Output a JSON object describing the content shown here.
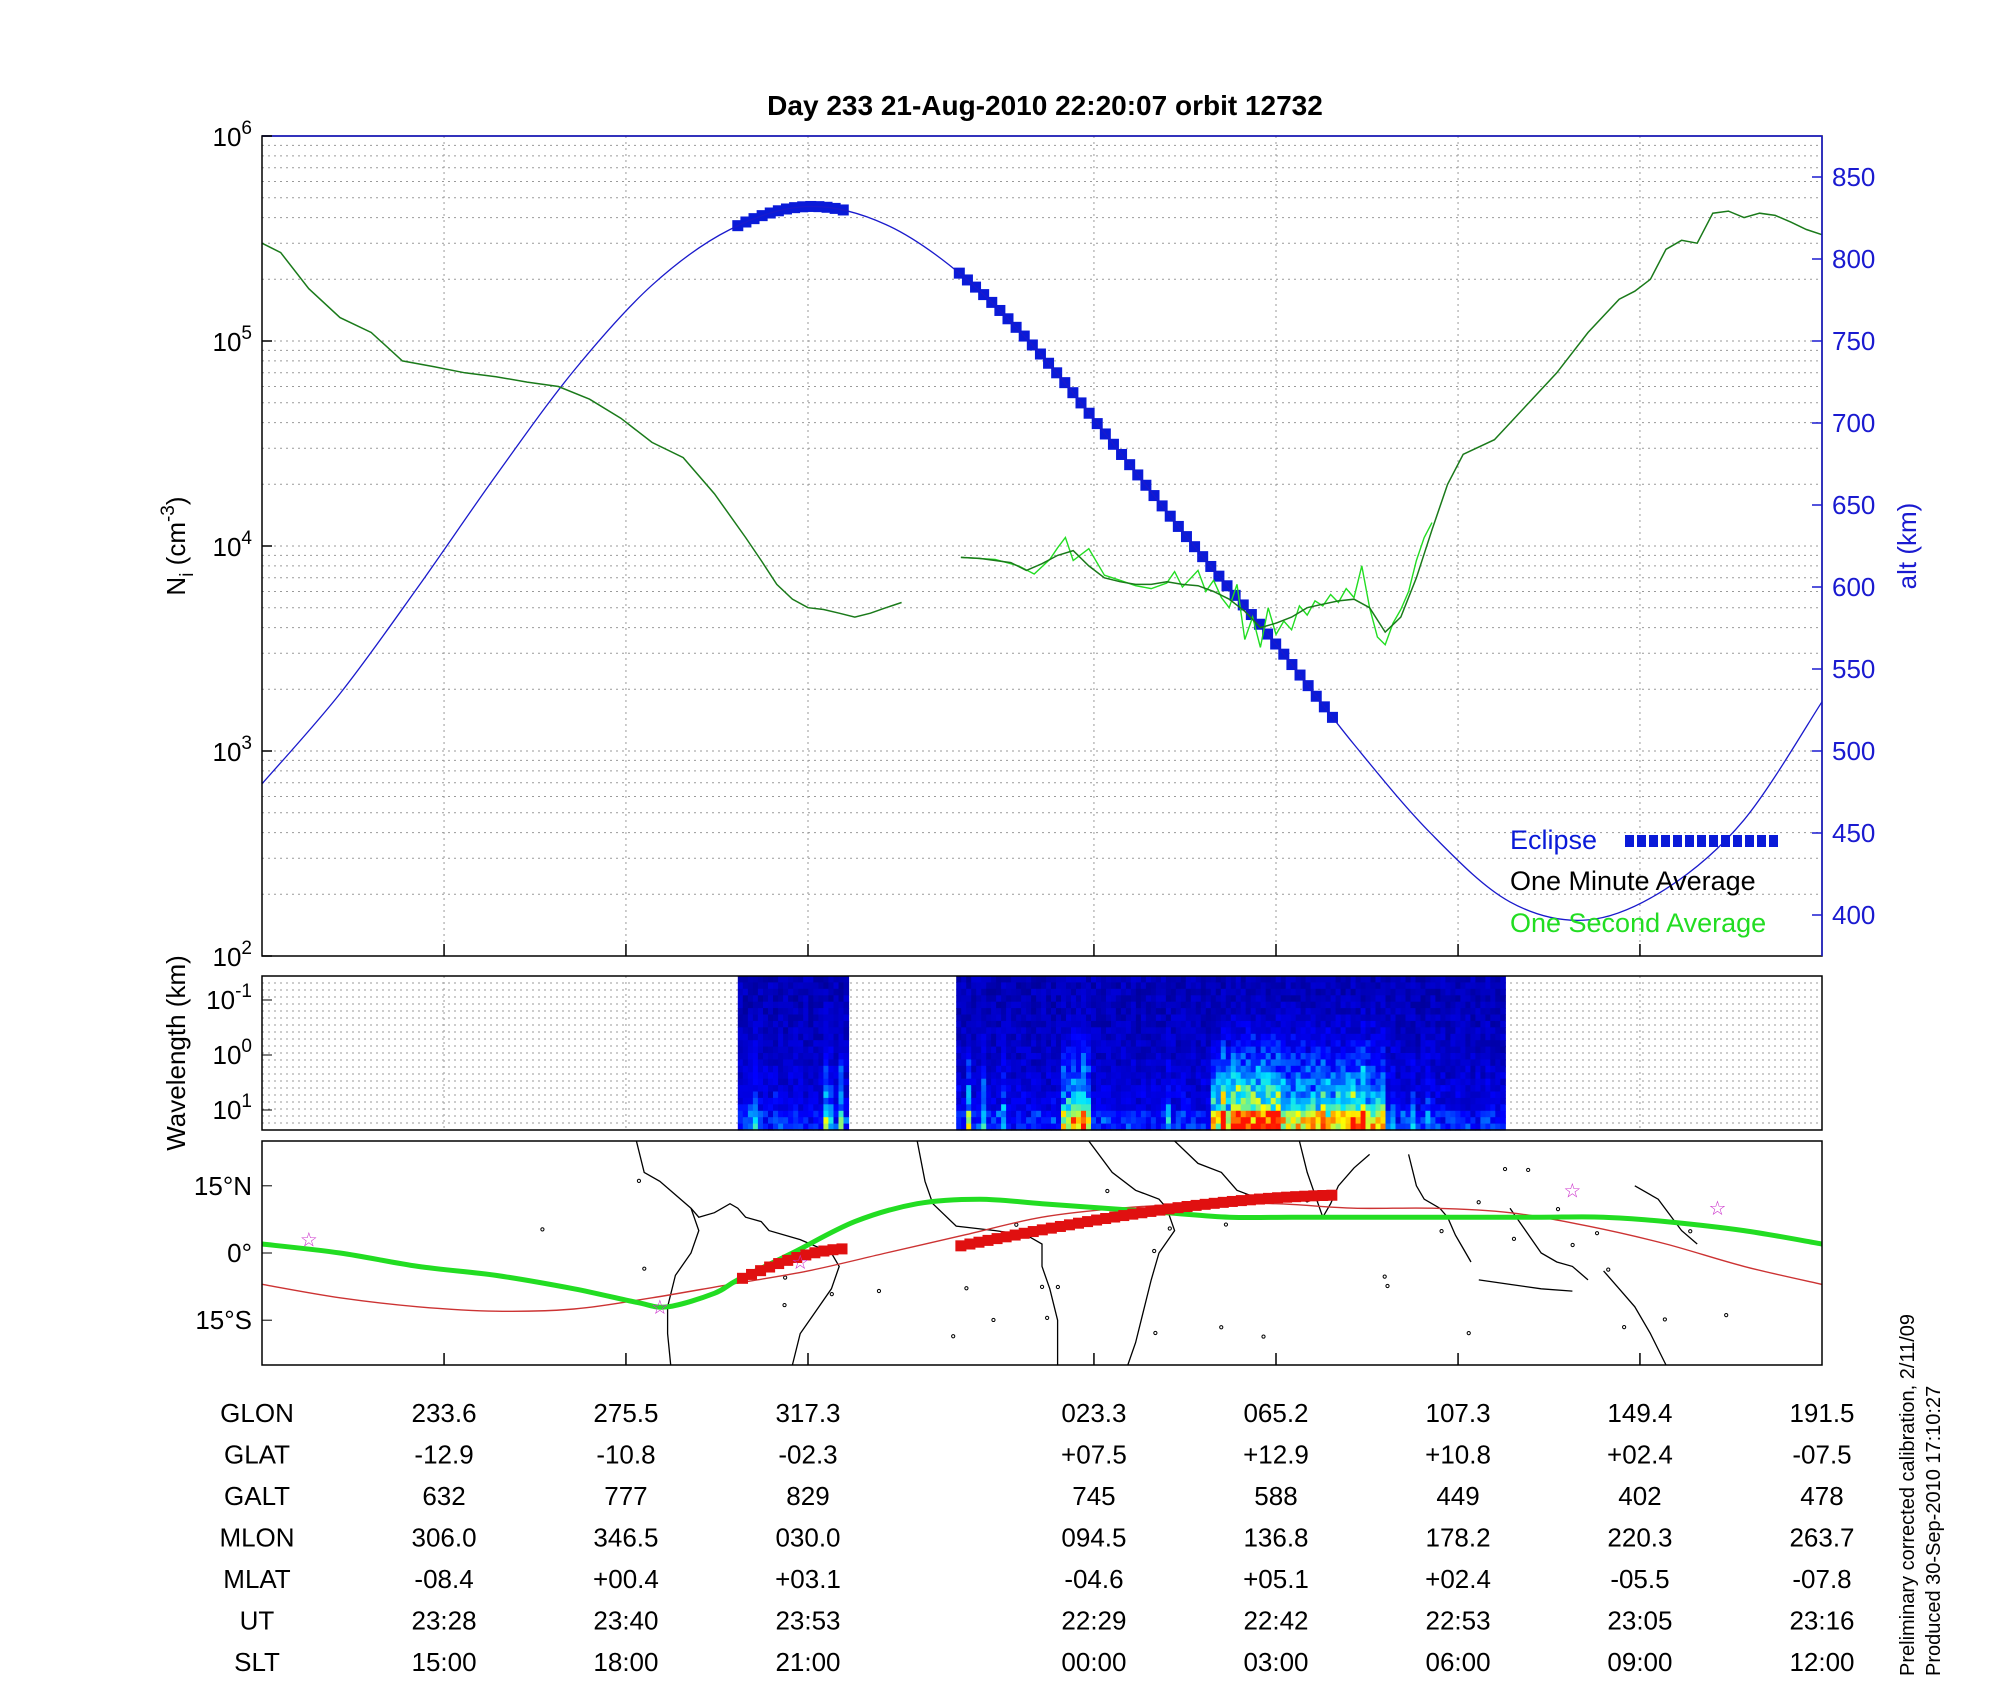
{
  "title": "Day 233  21-Aug-2010 22:20:07   orbit 12732",
  "chart_data": [
    {
      "type": "line",
      "panel": "density",
      "yscale": "log",
      "ylim": [
        100,
        1000000
      ],
      "y_ticks": [
        {
          "base": "10",
          "exp": "2"
        },
        {
          "base": "10",
          "exp": "3"
        },
        {
          "base": "10",
          "exp": "4"
        },
        {
          "base": "10",
          "exp": "5"
        },
        {
          "base": "10",
          "exp": "6"
        }
      ],
      "ylabel": {
        "main": "N",
        "sub": "i",
        "units_open": " (cm",
        "units_exp": "-3",
        "units_close": ")"
      },
      "y2label": "alt (km)",
      "y2lim": [
        375,
        875
      ],
      "y2_ticks": [
        "400",
        "450",
        "500",
        "550",
        "600",
        "650",
        "700",
        "750",
        "800",
        "850"
      ],
      "xlim": [
        0,
        1
      ],
      "x_major_ticks": [
        0.1167,
        0.2333,
        0.35,
        0.5333,
        0.65,
        0.7667,
        0.8833
      ],
      "grid": true,
      "legend_position": "bottom-right",
      "legend": [
        {
          "label": "Eclipse",
          "color": "#0a1ad8"
        },
        {
          "label": "One Minute Average",
          "color": "#000000"
        },
        {
          "label": "One Second Average",
          "color": "#22dd22"
        }
      ],
      "series": [
        {
          "name": "One Minute Average",
          "color": "#1a7a1a",
          "segments": [
            [
              [
                0,
                300000
              ],
              [
                0.012,
                270000
              ],
              [
                0.03,
                180000
              ],
              [
                0.05,
                130000
              ],
              [
                0.07,
                110000
              ],
              [
                0.09,
                80000
              ],
              [
                0.11,
                75000
              ],
              [
                0.13,
                70000
              ],
              [
                0.15,
                67000
              ],
              [
                0.17,
                63000
              ],
              [
                0.19,
                60000
              ],
              [
                0.21,
                52000
              ],
              [
                0.23,
                42000
              ],
              [
                0.25,
                32000
              ],
              [
                0.27,
                27000
              ],
              [
                0.29,
                18000
              ],
              [
                0.31,
                11000
              ],
              [
                0.32,
                8500
              ],
              [
                0.33,
                6500
              ],
              [
                0.34,
                5500
              ],
              [
                0.35,
                5000
              ],
              [
                0.36,
                4900
              ],
              [
                0.37,
                4700
              ],
              [
                0.38,
                4500
              ],
              [
                0.39,
                4700
              ],
              [
                0.4,
                5000
              ],
              [
                0.41,
                5300
              ]
            ],
            [
              [
                0.448,
                8800
              ],
              [
                0.46,
                8700
              ],
              [
                0.48,
                8300
              ],
              [
                0.49,
                7600
              ],
              [
                0.5,
                8200
              ],
              [
                0.51,
                9000
              ],
              [
                0.52,
                9500
              ],
              [
                0.53,
                8000
              ],
              [
                0.54,
                7000
              ],
              [
                0.55,
                6700
              ],
              [
                0.56,
                6500
              ],
              [
                0.57,
                6500
              ],
              [
                0.58,
                6700
              ],
              [
                0.59,
                6500
              ],
              [
                0.6,
                6400
              ],
              [
                0.61,
                6000
              ],
              [
                0.62,
                5500
              ],
              [
                0.63,
                4800
              ],
              [
                0.64,
                4000
              ],
              [
                0.65,
                4200
              ],
              [
                0.66,
                4500
              ],
              [
                0.67,
                5000
              ],
              [
                0.68,
                5200
              ],
              [
                0.69,
                5400
              ],
              [
                0.7,
                5500
              ],
              [
                0.71,
                5000
              ],
              [
                0.72,
                3800
              ],
              [
                0.73,
                4500
              ],
              [
                0.74,
                7000
              ],
              [
                0.75,
                12000
              ],
              [
                0.76,
                20000
              ],
              [
                0.77,
                28000
              ],
              [
                0.79,
                33000
              ],
              [
                0.81,
                48000
              ],
              [
                0.83,
                70000
              ],
              [
                0.85,
                110000
              ],
              [
                0.87,
                160000
              ],
              [
                0.88,
                175000
              ],
              [
                0.89,
                200000
              ],
              [
                0.9,
                280000
              ],
              [
                0.91,
                310000
              ],
              [
                0.92,
                300000
              ],
              [
                0.93,
                420000
              ],
              [
                0.94,
                430000
              ],
              [
                0.95,
                400000
              ],
              [
                0.96,
                420000
              ],
              [
                0.97,
                410000
              ],
              [
                0.98,
                380000
              ],
              [
                0.99,
                350000
              ],
              [
                1.0,
                330000
              ]
            ]
          ]
        },
        {
          "name": "One Second Average",
          "color": "#22dd22",
          "segments": [
            [
              [
                0.448,
                8800
              ],
              [
                0.47,
                8600
              ],
              [
                0.485,
                8000
              ],
              [
                0.495,
                7300
              ],
              [
                0.505,
                8600
              ],
              [
                0.51,
                9800
              ],
              [
                0.515,
                11000
              ],
              [
                0.52,
                8500
              ],
              [
                0.53,
                9700
              ],
              [
                0.54,
                7200
              ],
              [
                0.55,
                6800
              ],
              [
                0.56,
                6400
              ],
              [
                0.57,
                6200
              ],
              [
                0.58,
                6600
              ],
              [
                0.585,
                7500
              ],
              [
                0.59,
                6300
              ],
              [
                0.6,
                7600
              ],
              [
                0.605,
                6000
              ],
              [
                0.61,
                6800
              ],
              [
                0.615,
                5600
              ],
              [
                0.62,
                5000
              ],
              [
                0.625,
                6500
              ],
              [
                0.63,
                3500
              ],
              [
                0.635,
                4500
              ],
              [
                0.64,
                3200
              ],
              [
                0.645,
                5000
              ],
              [
                0.65,
                3700
              ],
              [
                0.655,
                4300
              ],
              [
                0.66,
                3900
              ],
              [
                0.665,
                5100
              ],
              [
                0.67,
                4600
              ],
              [
                0.675,
                5400
              ],
              [
                0.68,
                5100
              ],
              [
                0.685,
                5800
              ],
              [
                0.69,
                5300
              ],
              [
                0.695,
                6200
              ],
              [
                0.7,
                5600
              ],
              [
                0.705,
                8000
              ],
              [
                0.71,
                5000
              ],
              [
                0.715,
                3600
              ],
              [
                0.72,
                3300
              ],
              [
                0.725,
                4200
              ],
              [
                0.73,
                4900
              ],
              [
                0.735,
                6000
              ],
              [
                0.74,
                8500
              ],
              [
                0.745,
                11000
              ],
              [
                0.75,
                13000
              ]
            ]
          ]
        },
        {
          "name": "alt",
          "color": "#1a1acc",
          "axis": "right",
          "x": [
            0,
            0.05,
            0.1,
            0.15,
            0.2,
            0.25,
            0.3,
            0.35,
            0.4,
            0.45,
            0.5,
            0.55,
            0.6,
            0.65,
            0.7,
            0.75,
            0.8,
            0.85,
            0.9,
            0.95,
            1.0
          ],
          "values": [
            480,
            535,
            600,
            668,
            732,
            784,
            818,
            832,
            821,
            789,
            741,
            682,
            622,
            565,
            504,
            449,
            408,
            397,
            416,
            458,
            530
          ]
        }
      ],
      "eclipse_ranges": [
        [
          0.305,
          0.375
        ],
        [
          0.447,
          0.69
        ]
      ]
    },
    {
      "type": "heatmap",
      "panel": "spectrogram",
      "ylabel": "Wavelength (km)",
      "y_ticks": [
        {
          "base": "10",
          "exp": "-1"
        },
        {
          "base": "10",
          "exp": "0"
        },
        {
          "base": "10",
          "exp": "1"
        }
      ],
      "data_ranges": [
        [
          0.305,
          0.376
        ],
        [
          0.445,
          0.797
        ]
      ],
      "colormap": [
        "#00008f",
        "#0000ff",
        "#00ffff",
        "#ffff00",
        "#ff0000"
      ]
    },
    {
      "type": "line",
      "panel": "map",
      "y_ticks": [
        "15°N",
        "0°",
        "15°S"
      ],
      "ylim": [
        -25,
        25
      ],
      "series": [
        {
          "name": "orbit track",
          "color": "#22dd22",
          "x": [
            0,
            0.05,
            0.1,
            0.15,
            0.2,
            0.24,
            0.26,
            0.29,
            0.305,
            0.34,
            0.38,
            0.42,
            0.46,
            0.5,
            0.54,
            0.58,
            0.62,
            0.66,
            0.7,
            0.74,
            0.78,
            0.82,
            0.86,
            0.9,
            0.95,
            1.0
          ],
          "values": [
            2,
            0,
            -3,
            -5,
            -8,
            -11,
            -12,
            -9,
            -6,
            0,
            7,
            11,
            12,
            11,
            10,
            9,
            8,
            8,
            8,
            8,
            8,
            8,
            8,
            7,
            5,
            2
          ]
        },
        {
          "name": "magnetic equator",
          "color": "#cc3333",
          "x": [
            0,
            0.05,
            0.1,
            0.15,
            0.2,
            0.25,
            0.3,
            0.35,
            0.4,
            0.45,
            0.5,
            0.55,
            0.6,
            0.65,
            0.7,
            0.75,
            0.8,
            0.85,
            0.9,
            0.95,
            1.0
          ],
          "values": [
            -7,
            -10,
            -12,
            -13,
            -12.5,
            -10,
            -7,
            -4,
            0,
            4,
            8,
            10,
            11,
            11,
            10,
            10,
            9,
            6,
            2,
            -3,
            -7
          ]
        }
      ],
      "eclipse_track_ranges": [
        [
          0.308,
          0.374
        ],
        [
          0.448,
          0.69
        ]
      ]
    }
  ],
  "table": {
    "row_labels": [
      "GLON",
      "GLAT",
      "GALT",
      "MLON",
      "MLAT",
      "UT",
      "SLT"
    ],
    "columns": [
      [
        "233.6",
        "-12.9",
        "632",
        "306.0",
        "-08.4",
        "23:28",
        "15:00"
      ],
      [
        "275.5",
        "-10.8",
        "777",
        "346.5",
        "+00.4",
        "23:40",
        "18:00"
      ],
      [
        "317.3",
        "-02.3",
        "829",
        "030.0",
        "+03.1",
        "23:53",
        "21:00"
      ],
      [
        "023.3",
        "+07.5",
        "745",
        "094.5",
        "-04.6",
        "22:29",
        "00:00"
      ],
      [
        "065.2",
        "+12.9",
        "588",
        "136.8",
        "+05.1",
        "22:42",
        "03:00"
      ],
      [
        "107.3",
        "+10.8",
        "449",
        "178.2",
        "+02.4",
        "22:53",
        "06:00"
      ],
      [
        "149.4",
        "+02.4",
        "402",
        "220.3",
        "-05.5",
        "23:05",
        "09:00"
      ],
      [
        "191.5",
        "-07.5",
        "478",
        "263.7",
        "-07.8",
        "23:16",
        "12:00"
      ]
    ]
  },
  "notes": {
    "calibration": "Preliminary corrected calibration, 2/11/09",
    "produced": "Produced 30-Sep-2010 17:10:27"
  }
}
